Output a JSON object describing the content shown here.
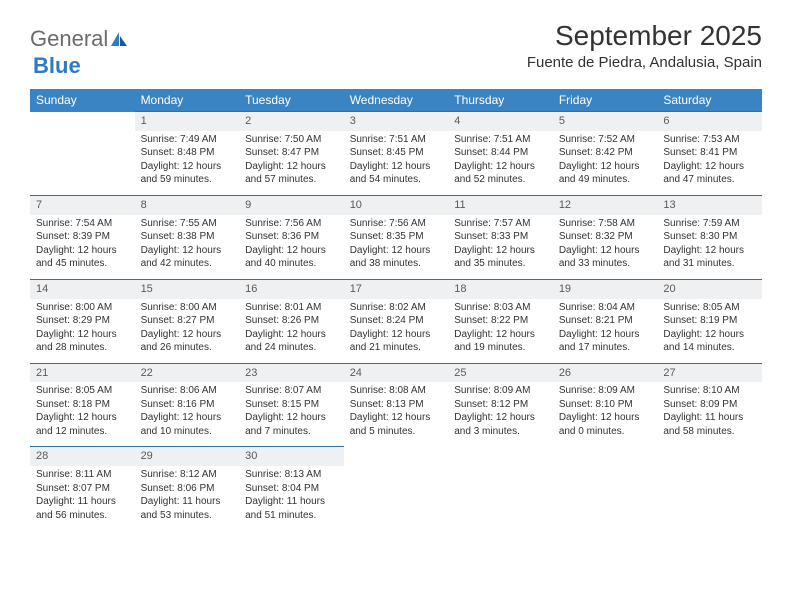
{
  "logo": {
    "text1": "General",
    "text2": "Blue"
  },
  "title": "September 2025",
  "location": "Fuente de Piedra, Andalusia, Spain",
  "colors": {
    "header_bg": "#3b84c4",
    "header_text": "#ffffff",
    "daynum_bg": "#eef0f2",
    "daynum_border": "#2f6fa6",
    "body_text": "#333333",
    "logo_gray": "#6b6b6b",
    "logo_blue": "#2f7bbf"
  },
  "weekdays": [
    "Sunday",
    "Monday",
    "Tuesday",
    "Wednesday",
    "Thursday",
    "Friday",
    "Saturday"
  ],
  "weeks": [
    [
      null,
      {
        "n": "1",
        "sunrise": "7:49 AM",
        "sunset": "8:48 PM",
        "day_h": "12",
        "day_m": "59"
      },
      {
        "n": "2",
        "sunrise": "7:50 AM",
        "sunset": "8:47 PM",
        "day_h": "12",
        "day_m": "57"
      },
      {
        "n": "3",
        "sunrise": "7:51 AM",
        "sunset": "8:45 PM",
        "day_h": "12",
        "day_m": "54"
      },
      {
        "n": "4",
        "sunrise": "7:51 AM",
        "sunset": "8:44 PM",
        "day_h": "12",
        "day_m": "52"
      },
      {
        "n": "5",
        "sunrise": "7:52 AM",
        "sunset": "8:42 PM",
        "day_h": "12",
        "day_m": "49"
      },
      {
        "n": "6",
        "sunrise": "7:53 AM",
        "sunset": "8:41 PM",
        "day_h": "12",
        "day_m": "47"
      }
    ],
    [
      {
        "n": "7",
        "sunrise": "7:54 AM",
        "sunset": "8:39 PM",
        "day_h": "12",
        "day_m": "45"
      },
      {
        "n": "8",
        "sunrise": "7:55 AM",
        "sunset": "8:38 PM",
        "day_h": "12",
        "day_m": "42"
      },
      {
        "n": "9",
        "sunrise": "7:56 AM",
        "sunset": "8:36 PM",
        "day_h": "12",
        "day_m": "40"
      },
      {
        "n": "10",
        "sunrise": "7:56 AM",
        "sunset": "8:35 PM",
        "day_h": "12",
        "day_m": "38"
      },
      {
        "n": "11",
        "sunrise": "7:57 AM",
        "sunset": "8:33 PM",
        "day_h": "12",
        "day_m": "35"
      },
      {
        "n": "12",
        "sunrise": "7:58 AM",
        "sunset": "8:32 PM",
        "day_h": "12",
        "day_m": "33"
      },
      {
        "n": "13",
        "sunrise": "7:59 AM",
        "sunset": "8:30 PM",
        "day_h": "12",
        "day_m": "31"
      }
    ],
    [
      {
        "n": "14",
        "sunrise": "8:00 AM",
        "sunset": "8:29 PM",
        "day_h": "12",
        "day_m": "28"
      },
      {
        "n": "15",
        "sunrise": "8:00 AM",
        "sunset": "8:27 PM",
        "day_h": "12",
        "day_m": "26"
      },
      {
        "n": "16",
        "sunrise": "8:01 AM",
        "sunset": "8:26 PM",
        "day_h": "12",
        "day_m": "24"
      },
      {
        "n": "17",
        "sunrise": "8:02 AM",
        "sunset": "8:24 PM",
        "day_h": "12",
        "day_m": "21"
      },
      {
        "n": "18",
        "sunrise": "8:03 AM",
        "sunset": "8:22 PM",
        "day_h": "12",
        "day_m": "19"
      },
      {
        "n": "19",
        "sunrise": "8:04 AM",
        "sunset": "8:21 PM",
        "day_h": "12",
        "day_m": "17"
      },
      {
        "n": "20",
        "sunrise": "8:05 AM",
        "sunset": "8:19 PM",
        "day_h": "12",
        "day_m": "14"
      }
    ],
    [
      {
        "n": "21",
        "sunrise": "8:05 AM",
        "sunset": "8:18 PM",
        "day_h": "12",
        "day_m": "12"
      },
      {
        "n": "22",
        "sunrise": "8:06 AM",
        "sunset": "8:16 PM",
        "day_h": "12",
        "day_m": "10"
      },
      {
        "n": "23",
        "sunrise": "8:07 AM",
        "sunset": "8:15 PM",
        "day_h": "12",
        "day_m": "7"
      },
      {
        "n": "24",
        "sunrise": "8:08 AM",
        "sunset": "8:13 PM",
        "day_h": "12",
        "day_m": "5"
      },
      {
        "n": "25",
        "sunrise": "8:09 AM",
        "sunset": "8:12 PM",
        "day_h": "12",
        "day_m": "3"
      },
      {
        "n": "26",
        "sunrise": "8:09 AM",
        "sunset": "8:10 PM",
        "day_h": "12",
        "day_m": "0"
      },
      {
        "n": "27",
        "sunrise": "8:10 AM",
        "sunset": "8:09 PM",
        "day_h": "11",
        "day_m": "58"
      }
    ],
    [
      {
        "n": "28",
        "sunrise": "8:11 AM",
        "sunset": "8:07 PM",
        "day_h": "11",
        "day_m": "56"
      },
      {
        "n": "29",
        "sunrise": "8:12 AM",
        "sunset": "8:06 PM",
        "day_h": "11",
        "day_m": "53"
      },
      {
        "n": "30",
        "sunrise": "8:13 AM",
        "sunset": "8:04 PM",
        "day_h": "11",
        "day_m": "51"
      },
      null,
      null,
      null,
      null
    ]
  ],
  "labels": {
    "sunrise": "Sunrise: ",
    "sunset": "Sunset: ",
    "daylight_prefix": "Daylight: ",
    "hours_word": " hours and ",
    "minutes_word": " minutes."
  }
}
